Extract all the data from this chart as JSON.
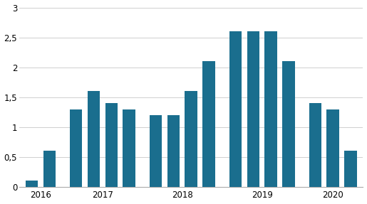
{
  "values": [
    0.1,
    0.6,
    1.3,
    1.6,
    1.4,
    1.3,
    1.2,
    1.2,
    1.6,
    2.1,
    2.6,
    2.6,
    2.6,
    2.1,
    1.4,
    1.3,
    0.6
  ],
  "bar_color": "#1a6e8e",
  "ylim": [
    0,
    3
  ],
  "yticks": [
    0,
    0.5,
    1.0,
    1.5,
    2.0,
    2.5,
    3.0
  ],
  "ytick_labels": [
    "0",
    "0,5",
    "1",
    "1,5",
    "2",
    "2,5",
    "3"
  ],
  "year_labels": [
    "2016",
    "2017",
    "2018",
    "2019",
    "2020"
  ],
  "background_color": "#ffffff",
  "grid_color": "#c8c8c8",
  "n_bars": 17,
  "bar_width": 0.7,
  "figsize": [
    5.15,
    2.87
  ],
  "dpi": 100
}
